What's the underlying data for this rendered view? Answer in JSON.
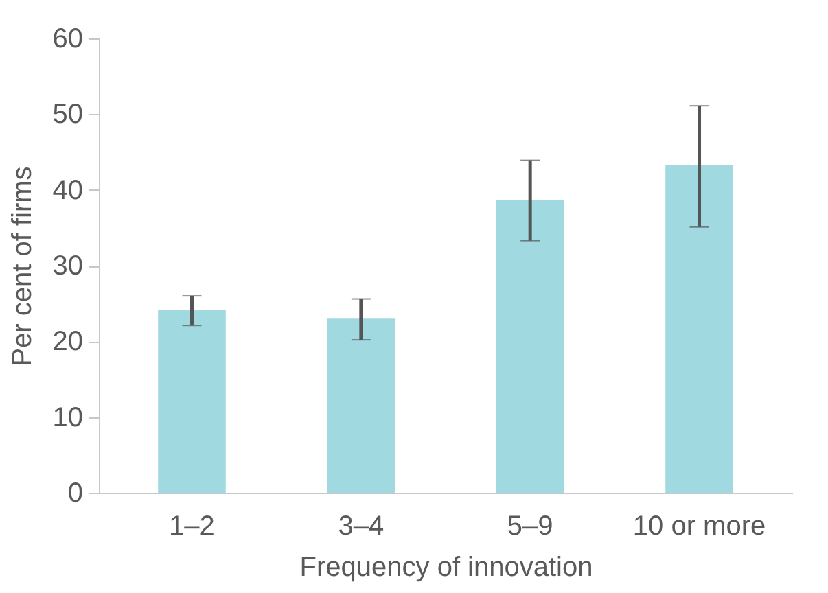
{
  "chart_data": {
    "type": "bar",
    "xlabel": "Frequency of innovation",
    "ylabel": "Per cent of firms",
    "categories": [
      "1–2",
      "3–4",
      "5–9",
      "10 or more"
    ],
    "values": [
      24.1,
      23.0,
      38.7,
      43.3
    ],
    "errors": [
      [
        22.1,
        26.0
      ],
      [
        20.2,
        25.6
      ],
      [
        33.3,
        43.9
      ],
      [
        35.1,
        51.1
      ]
    ],
    "color": "#a0d9e0",
    "ylim": [
      0,
      60
    ],
    "yticks": [
      0,
      10,
      20,
      30,
      40,
      50,
      60
    ],
    "grid": false
  }
}
